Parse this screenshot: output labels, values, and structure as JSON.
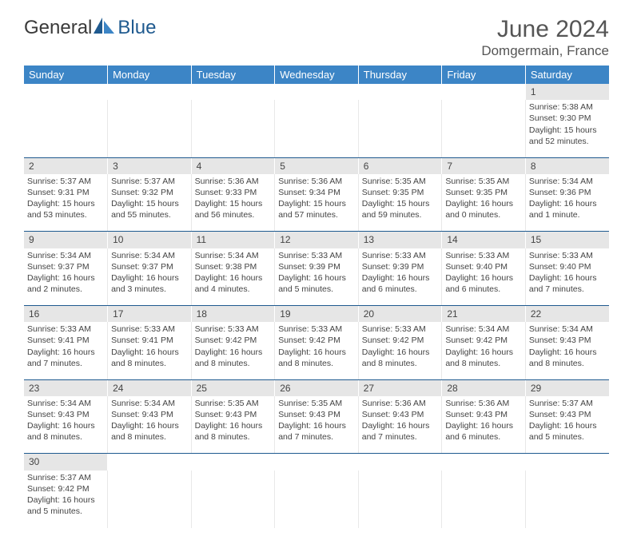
{
  "logo": {
    "text1": "General",
    "text2": "Blue"
  },
  "title": "June 2024",
  "location": "Domgermain, France",
  "colors": {
    "header_bg": "#3c85c6",
    "header_text": "#ffffff",
    "daynum_bg": "#e6e6e6",
    "cell_border_bottom": "#1f5a8f",
    "text_color": "#444444",
    "logo_accent": "#1f5a8f"
  },
  "weekdays": [
    "Sunday",
    "Monday",
    "Tuesday",
    "Wednesday",
    "Thursday",
    "Friday",
    "Saturday"
  ],
  "weeks": [
    {
      "nums": [
        "",
        "",
        "",
        "",
        "",
        "",
        "1"
      ],
      "cells": [
        null,
        null,
        null,
        null,
        null,
        null,
        {
          "sunrise": "Sunrise: 5:38 AM",
          "sunset": "Sunset: 9:30 PM",
          "daylight": "Daylight: 15 hours and 52 minutes."
        }
      ]
    },
    {
      "nums": [
        "2",
        "3",
        "4",
        "5",
        "6",
        "7",
        "8"
      ],
      "cells": [
        {
          "sunrise": "Sunrise: 5:37 AM",
          "sunset": "Sunset: 9:31 PM",
          "daylight": "Daylight: 15 hours and 53 minutes."
        },
        {
          "sunrise": "Sunrise: 5:37 AM",
          "sunset": "Sunset: 9:32 PM",
          "daylight": "Daylight: 15 hours and 55 minutes."
        },
        {
          "sunrise": "Sunrise: 5:36 AM",
          "sunset": "Sunset: 9:33 PM",
          "daylight": "Daylight: 15 hours and 56 minutes."
        },
        {
          "sunrise": "Sunrise: 5:36 AM",
          "sunset": "Sunset: 9:34 PM",
          "daylight": "Daylight: 15 hours and 57 minutes."
        },
        {
          "sunrise": "Sunrise: 5:35 AM",
          "sunset": "Sunset: 9:35 PM",
          "daylight": "Daylight: 15 hours and 59 minutes."
        },
        {
          "sunrise": "Sunrise: 5:35 AM",
          "sunset": "Sunset: 9:35 PM",
          "daylight": "Daylight: 16 hours and 0 minutes."
        },
        {
          "sunrise": "Sunrise: 5:34 AM",
          "sunset": "Sunset: 9:36 PM",
          "daylight": "Daylight: 16 hours and 1 minute."
        }
      ]
    },
    {
      "nums": [
        "9",
        "10",
        "11",
        "12",
        "13",
        "14",
        "15"
      ],
      "cells": [
        {
          "sunrise": "Sunrise: 5:34 AM",
          "sunset": "Sunset: 9:37 PM",
          "daylight": "Daylight: 16 hours and 2 minutes."
        },
        {
          "sunrise": "Sunrise: 5:34 AM",
          "sunset": "Sunset: 9:37 PM",
          "daylight": "Daylight: 16 hours and 3 minutes."
        },
        {
          "sunrise": "Sunrise: 5:34 AM",
          "sunset": "Sunset: 9:38 PM",
          "daylight": "Daylight: 16 hours and 4 minutes."
        },
        {
          "sunrise": "Sunrise: 5:33 AM",
          "sunset": "Sunset: 9:39 PM",
          "daylight": "Daylight: 16 hours and 5 minutes."
        },
        {
          "sunrise": "Sunrise: 5:33 AM",
          "sunset": "Sunset: 9:39 PM",
          "daylight": "Daylight: 16 hours and 6 minutes."
        },
        {
          "sunrise": "Sunrise: 5:33 AM",
          "sunset": "Sunset: 9:40 PM",
          "daylight": "Daylight: 16 hours and 6 minutes."
        },
        {
          "sunrise": "Sunrise: 5:33 AM",
          "sunset": "Sunset: 9:40 PM",
          "daylight": "Daylight: 16 hours and 7 minutes."
        }
      ]
    },
    {
      "nums": [
        "16",
        "17",
        "18",
        "19",
        "20",
        "21",
        "22"
      ],
      "cells": [
        {
          "sunrise": "Sunrise: 5:33 AM",
          "sunset": "Sunset: 9:41 PM",
          "daylight": "Daylight: 16 hours and 7 minutes."
        },
        {
          "sunrise": "Sunrise: 5:33 AM",
          "sunset": "Sunset: 9:41 PM",
          "daylight": "Daylight: 16 hours and 8 minutes."
        },
        {
          "sunrise": "Sunrise: 5:33 AM",
          "sunset": "Sunset: 9:42 PM",
          "daylight": "Daylight: 16 hours and 8 minutes."
        },
        {
          "sunrise": "Sunrise: 5:33 AM",
          "sunset": "Sunset: 9:42 PM",
          "daylight": "Daylight: 16 hours and 8 minutes."
        },
        {
          "sunrise": "Sunrise: 5:33 AM",
          "sunset": "Sunset: 9:42 PM",
          "daylight": "Daylight: 16 hours and 8 minutes."
        },
        {
          "sunrise": "Sunrise: 5:34 AM",
          "sunset": "Sunset: 9:42 PM",
          "daylight": "Daylight: 16 hours and 8 minutes."
        },
        {
          "sunrise": "Sunrise: 5:34 AM",
          "sunset": "Sunset: 9:43 PM",
          "daylight": "Daylight: 16 hours and 8 minutes."
        }
      ]
    },
    {
      "nums": [
        "23",
        "24",
        "25",
        "26",
        "27",
        "28",
        "29"
      ],
      "cells": [
        {
          "sunrise": "Sunrise: 5:34 AM",
          "sunset": "Sunset: 9:43 PM",
          "daylight": "Daylight: 16 hours and 8 minutes."
        },
        {
          "sunrise": "Sunrise: 5:34 AM",
          "sunset": "Sunset: 9:43 PM",
          "daylight": "Daylight: 16 hours and 8 minutes."
        },
        {
          "sunrise": "Sunrise: 5:35 AM",
          "sunset": "Sunset: 9:43 PM",
          "daylight": "Daylight: 16 hours and 8 minutes."
        },
        {
          "sunrise": "Sunrise: 5:35 AM",
          "sunset": "Sunset: 9:43 PM",
          "daylight": "Daylight: 16 hours and 7 minutes."
        },
        {
          "sunrise": "Sunrise: 5:36 AM",
          "sunset": "Sunset: 9:43 PM",
          "daylight": "Daylight: 16 hours and 7 minutes."
        },
        {
          "sunrise": "Sunrise: 5:36 AM",
          "sunset": "Sunset: 9:43 PM",
          "daylight": "Daylight: 16 hours and 6 minutes."
        },
        {
          "sunrise": "Sunrise: 5:37 AM",
          "sunset": "Sunset: 9:43 PM",
          "daylight": "Daylight: 16 hours and 5 minutes."
        }
      ]
    },
    {
      "nums": [
        "30",
        "",
        "",
        "",
        "",
        "",
        ""
      ],
      "cells": [
        {
          "sunrise": "Sunrise: 5:37 AM",
          "sunset": "Sunset: 9:42 PM",
          "daylight": "Daylight: 16 hours and 5 minutes."
        },
        null,
        null,
        null,
        null,
        null,
        null
      ]
    }
  ]
}
